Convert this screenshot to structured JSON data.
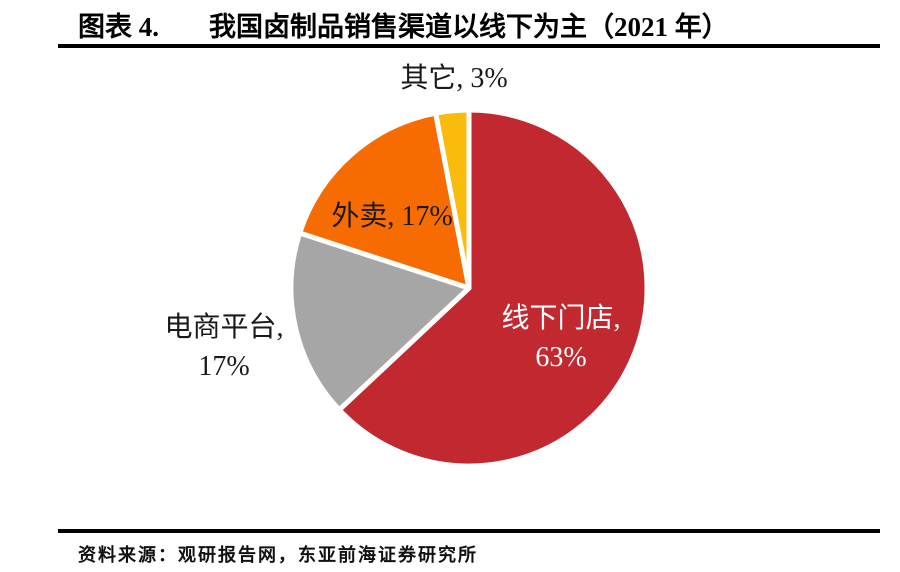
{
  "page": {
    "title_prefix": "图表 4.",
    "title_main": "我国卤制品销售渠道以线下为主（2021 年）",
    "source": "资料来源：观研报告网，东亚前海证券研究所"
  },
  "chart_data": {
    "type": "pie",
    "title": "我国卤制品销售渠道以线下为主（2021 年）",
    "year": "2021",
    "categories": [
      "线下门店",
      "电商平台",
      "外卖",
      "其它"
    ],
    "keys": [
      "offline-store",
      "ecommerce-platform",
      "takeout",
      "other"
    ],
    "values": [
      63,
      17,
      17,
      3
    ],
    "unit": "%",
    "colors": [
      "#C2282F",
      "#A6A6A6",
      "#F76C00",
      "#F9BC0C"
    ],
    "start_angle_deg": 0,
    "direction": "clockwise",
    "separator_color": "#FFFFFF",
    "slice_labels": {
      "offline_line1": "线下门店,",
      "offline_line2": "63%",
      "ecommerce_line1": "电商平台,",
      "ecommerce_line2": "17%",
      "takeout": "外卖, 17%",
      "other": "其它, 3%"
    }
  }
}
